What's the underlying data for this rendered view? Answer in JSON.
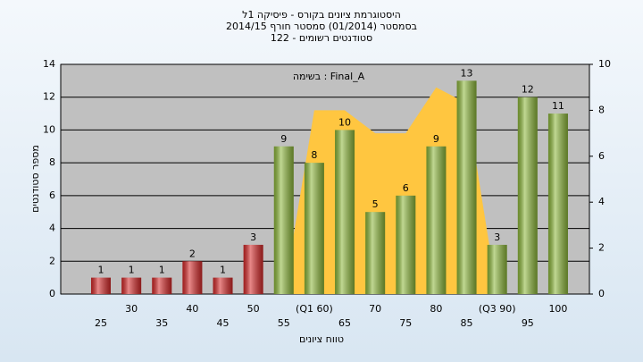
{
  "chart_data": {
    "type": "bar",
    "title": [
      "היסטוגרמת ציונים בקורס - פיסיקה 1ל",
      "בסמסטר (01/2014) סמסטר חורף 2014/15",
      "סטודנטים רשומים - 122"
    ],
    "annotation": "בשימה : Final_A",
    "y_label": "מספר סטודנטים",
    "x_label": "טווח ציונים",
    "categories": [
      "25",
      "30",
      "35",
      "40",
      "45",
      "50",
      "55",
      "(Q1 60)",
      "65",
      "70",
      "75",
      "80",
      "85",
      "(Q3 90)",
      "95",
      "100"
    ],
    "series": [
      {
        "color": [
          "#d62828",
          "#d62828",
          "#d62828",
          "#d62828",
          "#d62828",
          "#d62828",
          "#8db83a",
          "#8db83a",
          "#8db83a",
          "#8db83a",
          "#8db83a",
          "#8db83a",
          "#8db83a",
          "#8db83a",
          "#8db83a",
          "#8db83a"
        ],
        "values": [
          1,
          1,
          1,
          2,
          1,
          3,
          9,
          8,
          10,
          5,
          6,
          9,
          13,
          3,
          12,
          11
        ]
      },
      {
        "type": "area",
        "axis": "y2",
        "color": "#ffc640",
        "values": [
          null,
          null,
          null,
          null,
          null,
          null,
          0,
          8,
          8,
          7,
          7,
          9,
          8.3,
          0,
          null,
          null
        ]
      }
    ],
    "ylim": [
      0,
      14
    ],
    "yticks": [
      0,
      2,
      4,
      6,
      8,
      10,
      12,
      14
    ],
    "y2lim": [
      0,
      10
    ],
    "y2ticks": [
      0,
      2,
      4,
      6,
      8,
      10
    ],
    "grid": true
  }
}
